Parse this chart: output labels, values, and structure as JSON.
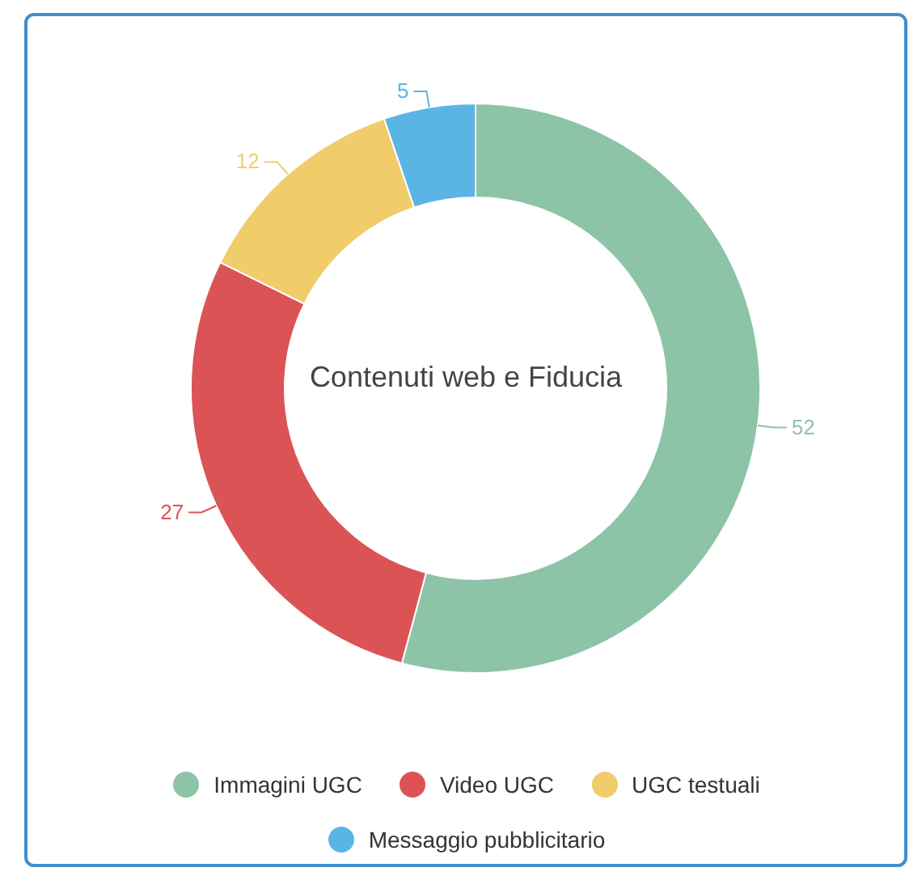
{
  "chart_data": {
    "type": "donut",
    "title": "Contenuti web e Fiducia",
    "categories": [
      "Immagini UGC",
      "Video UGC",
      "UGC testuali",
      "Messaggio pubblicitario"
    ],
    "values": [
      52,
      27,
      12,
      5
    ],
    "colors": [
      "#8dc3a7",
      "#dc5356",
      "#f0cc6a",
      "#5ab5e5"
    ],
    "data_labels": true,
    "legend": "bottom"
  }
}
